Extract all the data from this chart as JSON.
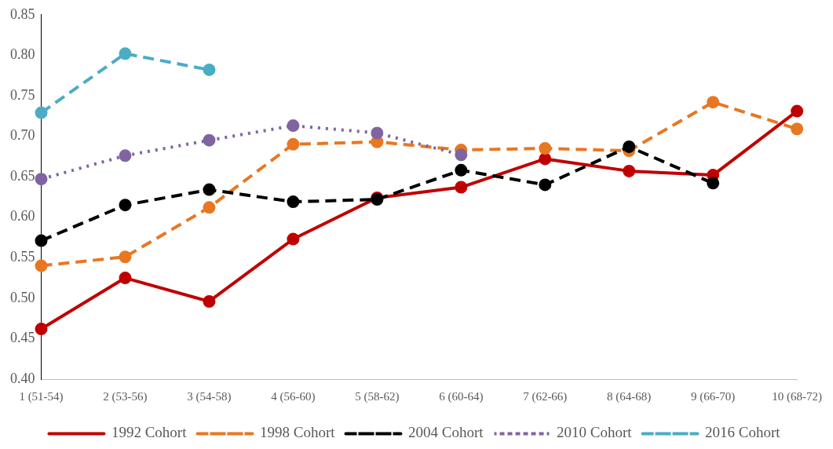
{
  "chart_data": {
    "type": "line",
    "categories": [
      "1 (51-54)",
      "2 (53-56)",
      "3 (54-58)",
      "4 (56-60)",
      "5 (58-62)",
      "6 (60-64)",
      "7 (62-66)",
      "8 (64-68)",
      "9 (66-70)",
      "10 (68-72)"
    ],
    "series": [
      {
        "name": "1992 Cohort",
        "color": "#c00000",
        "line_style": "solid",
        "values": [
          0.462,
          0.525,
          0.496,
          0.573,
          0.624,
          0.637,
          0.672,
          0.657,
          0.652,
          0.731
        ]
      },
      {
        "name": "1998 Cohort",
        "color": "#e87722",
        "line_style": "dashed",
        "values": [
          0.54,
          0.551,
          0.612,
          0.69,
          0.693,
          0.683,
          0.685,
          0.682,
          0.742,
          0.709
        ]
      },
      {
        "name": "2004 Cohort",
        "color": "#000000",
        "line_style": "dashed",
        "values": [
          0.571,
          0.615,
          0.634,
          0.619,
          0.622,
          0.658,
          0.64,
          0.687,
          0.642,
          null
        ]
      },
      {
        "name": "2010 Cohort",
        "color": "#8064a2",
        "line_style": "dotted",
        "values": [
          0.647,
          0.676,
          0.695,
          0.713,
          0.704,
          0.677,
          null,
          null,
          null,
          null
        ]
      },
      {
        "name": "2016 Cohort",
        "color": "#4bacc6",
        "line_style": "dashed",
        "values": [
          0.729,
          0.802,
          0.782,
          null,
          null,
          null,
          null,
          null,
          null,
          null
        ]
      }
    ],
    "ylim": [
      0.4,
      0.85
    ],
    "yticks": [
      {
        "value": 0.4,
        "label": "0.40"
      },
      {
        "value": 0.45,
        "label": "0.45"
      },
      {
        "value": 0.5,
        "label": "0.50"
      },
      {
        "value": 0.55,
        "label": "0.55"
      },
      {
        "value": 0.6,
        "label": "0.60"
      },
      {
        "value": 0.65,
        "label": "0.65"
      },
      {
        "value": 0.7,
        "label": "0.70"
      },
      {
        "value": 0.75,
        "label": "0.75"
      },
      {
        "value": 0.8,
        "label": "0.80"
      },
      {
        "value": 0.85,
        "label": "0.85"
      }
    ],
    "grid": false,
    "legend": "bottom",
    "marker": "circle"
  }
}
